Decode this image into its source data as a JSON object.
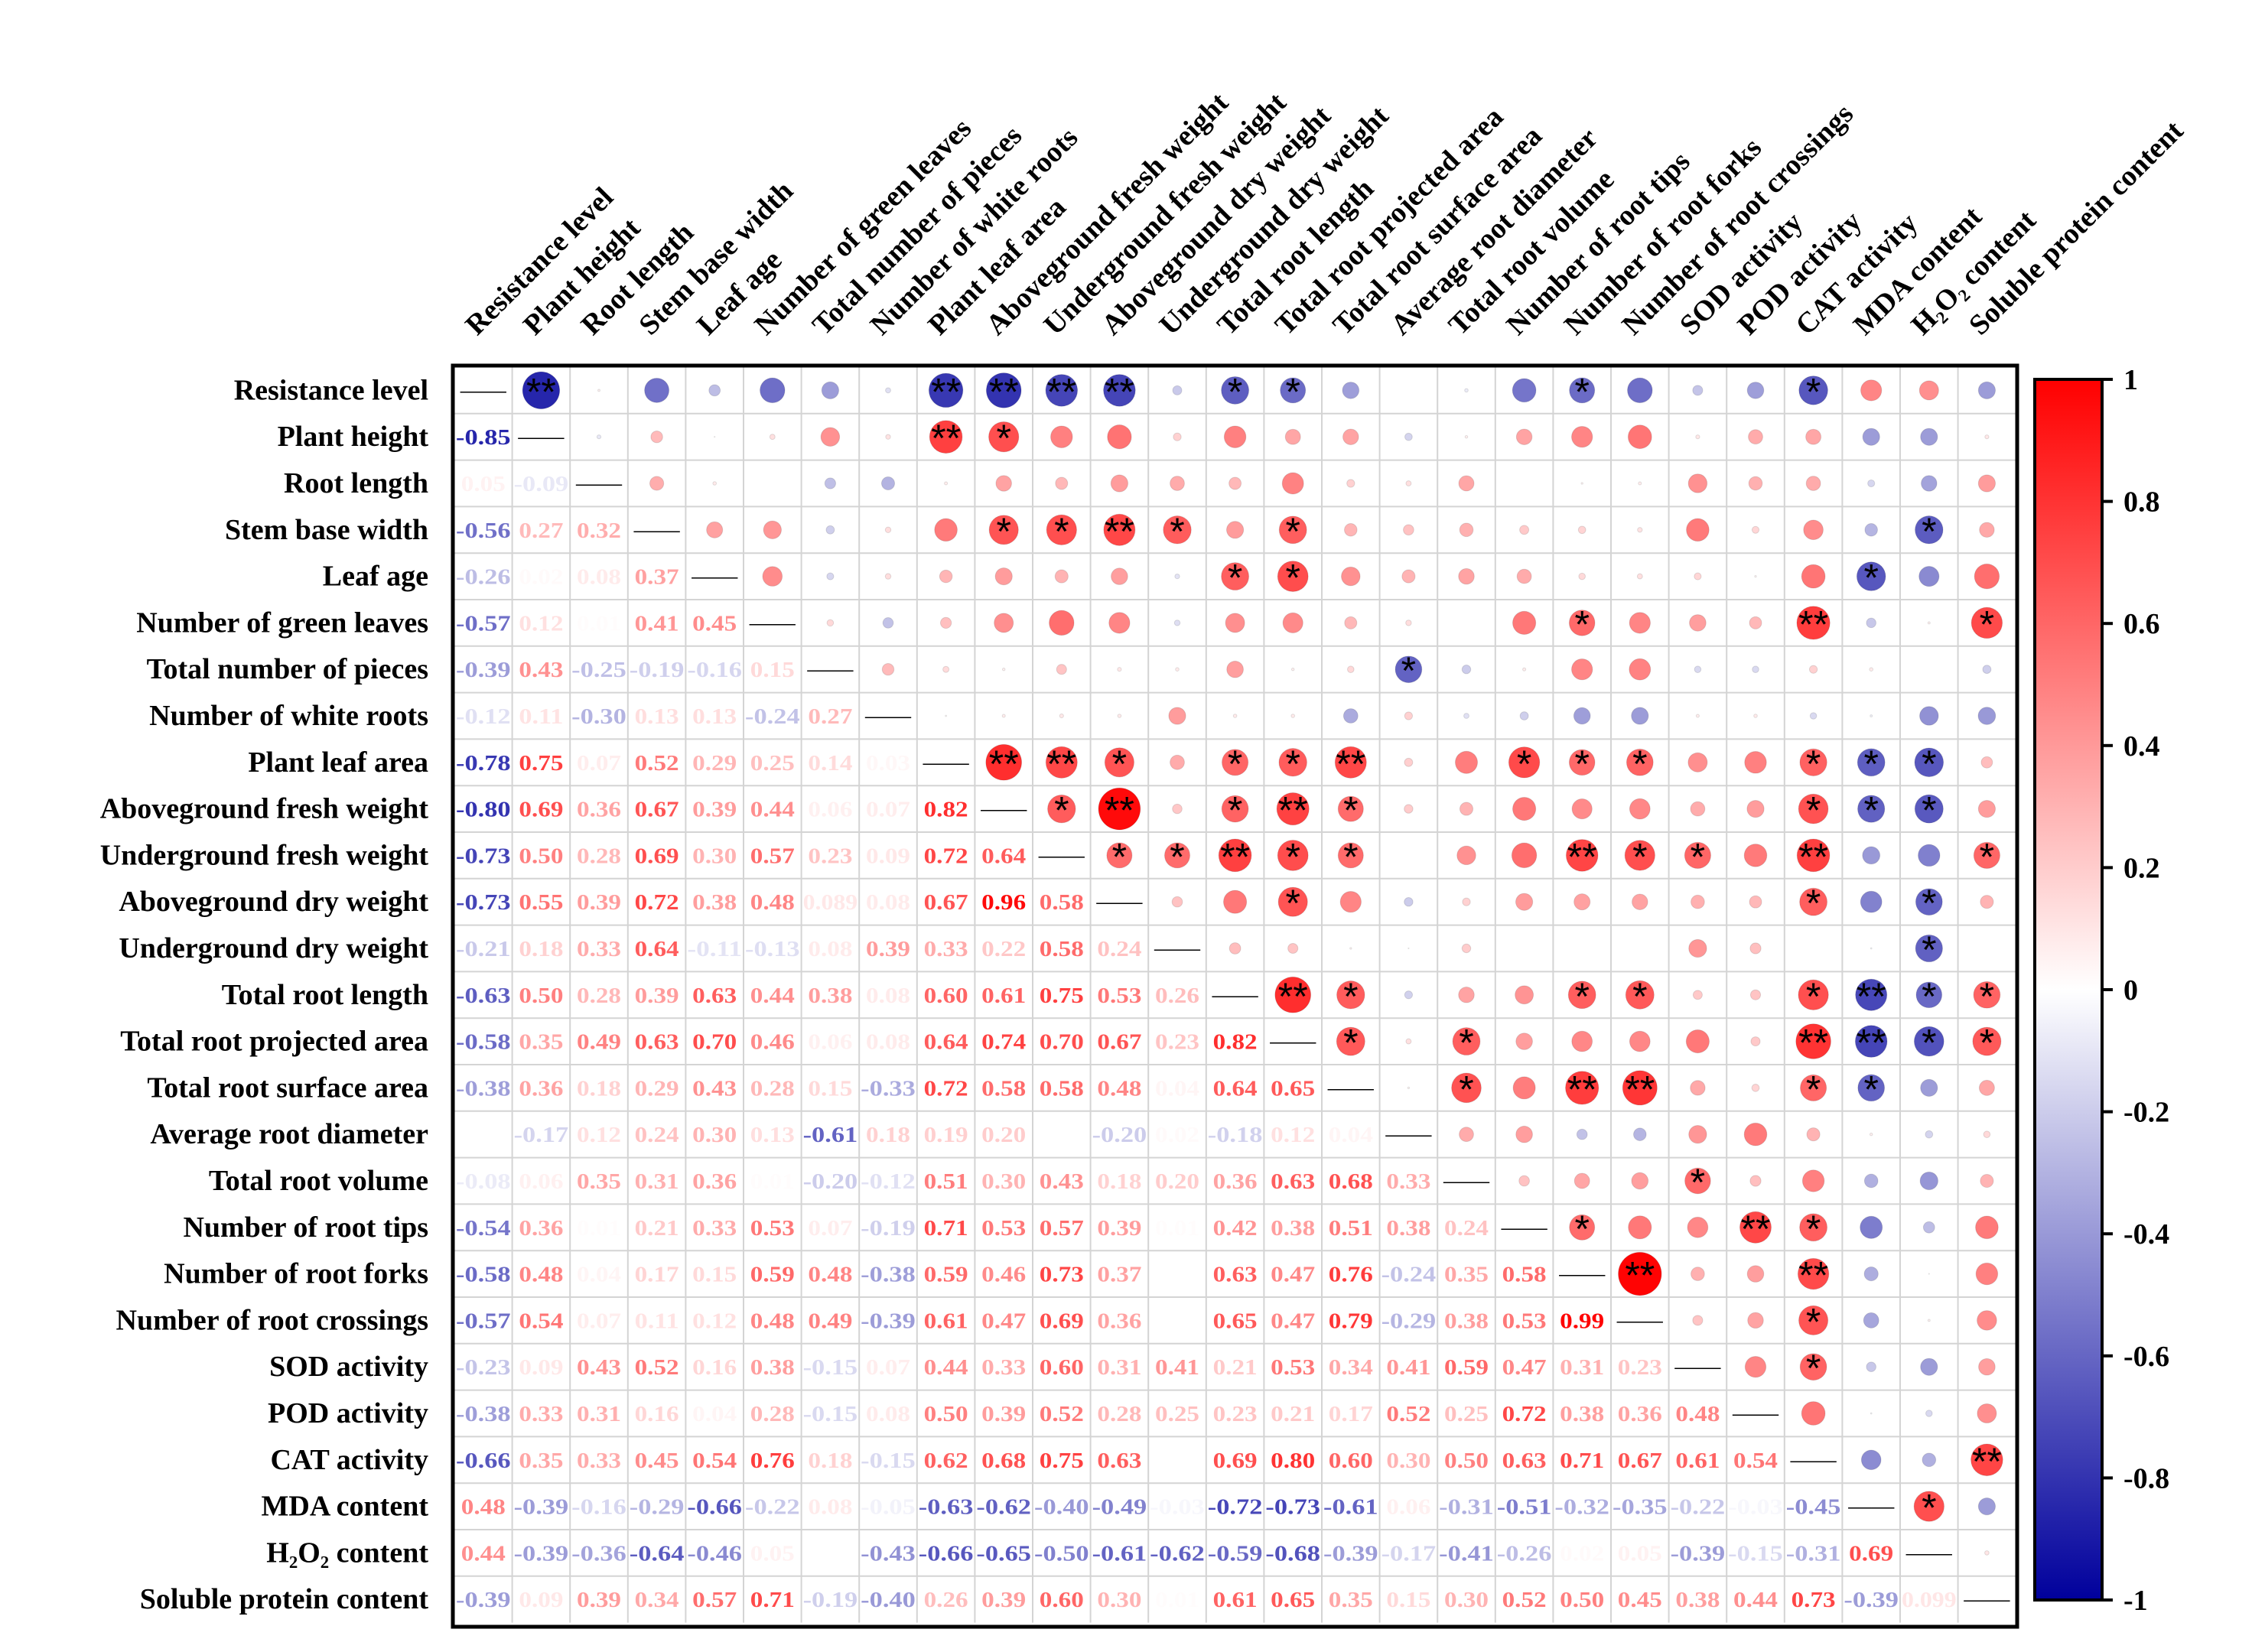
{
  "chart_data": {
    "type": "heatmap",
    "variables": [
      "Resistance level",
      "Plant height",
      "Root length",
      "Stem base width",
      "Leaf age",
      "Number of green leaves",
      "Total number of pieces",
      "Number of white roots",
      "Plant leaf area",
      "Aboveground fresh weight",
      "Underground fresh weight",
      "Aboveground dry weight",
      "Underground dry weight",
      "Total root length",
      "Total root projected area",
      "Total root surface area",
      "Average root diameter",
      "Total root volume",
      "Number of root tips",
      "Number of root forks",
      "Number of root crossings",
      "SOD activity",
      "POD activity",
      "CAT activity",
      "MDA content",
      "H₂O₂ content",
      "Soluble protein content"
    ],
    "lower_labels": [
      [
        "-0.85"
      ],
      [
        "0.05",
        "-0.09"
      ],
      [
        "-0.56",
        "0.27",
        "0.32"
      ],
      [
        "-0.26",
        "0.02",
        "0.08",
        "0.37"
      ],
      [
        "-0.57",
        "0.12",
        "0.01",
        "0.41",
        "0.45"
      ],
      [
        "-0.39",
        "0.43",
        "-0.25",
        "-0.19",
        "-0.16",
        "0.15"
      ],
      [
        "-0.12",
        "0.11",
        "-0.30",
        "0.13",
        "0.13",
        "-0.24",
        "0.27"
      ],
      [
        "-0.78",
        "0.75",
        "0.07",
        "0.52",
        "0.29",
        "0.25",
        "0.14",
        "0.03"
      ],
      [
        "-0.80",
        "0.69",
        "0.36",
        "0.67",
        "0.39",
        "0.44",
        "0.06",
        "0.07",
        "0.82"
      ],
      [
        "-0.73",
        "0.50",
        "0.28",
        "0.69",
        "0.30",
        "0.57",
        "0.23",
        "0.09",
        "0.72",
        "0.64"
      ],
      [
        "-0.73",
        "0.55",
        "0.39",
        "0.72",
        "0.38",
        "0.48",
        "0.089",
        "0.08",
        "0.67",
        "0.96",
        "0.58"
      ],
      [
        "-0.21",
        "0.18",
        "0.33",
        "0.64",
        "-0.11",
        "-0.13",
        "0.08",
        "0.39",
        "0.33",
        "0.22",
        "0.58",
        "0.24"
      ],
      [
        "-0.63",
        "0.50",
        "0.28",
        "0.39",
        "0.63",
        "0.44",
        "0.38",
        "0.08",
        "0.60",
        "0.61",
        "0.75",
        "0.53",
        "0.26"
      ],
      [
        "-0.58",
        "0.35",
        "0.49",
        "0.63",
        "0.70",
        "0.46",
        "0.06",
        "0.08",
        "0.64",
        "0.74",
        "0.70",
        "0.67",
        "0.23",
        "0.82"
      ],
      [
        "-0.38",
        "0.36",
        "0.18",
        "0.29",
        "0.43",
        "0.28",
        "0.15",
        "-0.33",
        "0.72",
        "0.58",
        "0.58",
        "0.48",
        "0.04",
        "0.64",
        "0.65"
      ],
      [
        "0.00",
        "-0.17",
        "0.12",
        "0.24",
        "0.30",
        "0.13",
        "-0.61",
        "0.18",
        "0.19",
        "0.20",
        "0.00",
        "-0.20",
        "0.02",
        "-0.18",
        "0.12",
        "0.04"
      ],
      [
        "-0.08",
        "0.06",
        "0.35",
        "0.31",
        "0.36",
        "0.01",
        "-0.20",
        "-0.12",
        "0.51",
        "0.30",
        "0.43",
        "0.18",
        "0.20",
        "0.36",
        "0.63",
        "0.68",
        "0.33"
      ],
      [
        "-0.54",
        "0.36",
        "0.01",
        "0.21",
        "0.33",
        "0.53",
        "0.07",
        "-0.19",
        "0.71",
        "0.53",
        "0.57",
        "0.39",
        "0.01",
        "0.42",
        "0.38",
        "0.51",
        "0.38",
        "0.24"
      ],
      [
        "-0.58",
        "0.48",
        "0.04",
        "0.17",
        "0.15",
        "0.59",
        "0.48",
        "-0.38",
        "0.59",
        "0.46",
        "0.73",
        "0.37",
        "0.00",
        "0.63",
        "0.47",
        "0.76",
        "-0.24",
        "0.35",
        "0.58"
      ],
      [
        "-0.57",
        "0.54",
        "0.07",
        "0.11",
        "0.12",
        "0.48",
        "0.49",
        "-0.39",
        "0.61",
        "0.47",
        "0.69",
        "0.36",
        "0.00",
        "0.65",
        "0.47",
        "0.79",
        "-0.29",
        "0.38",
        "0.53",
        "0.99"
      ],
      [
        "-0.23",
        "0.09",
        "0.43",
        "0.52",
        "0.16",
        "0.38",
        "-0.15",
        "0.07",
        "0.44",
        "0.33",
        "0.60",
        "0.31",
        "0.41",
        "0.21",
        "0.53",
        "0.34",
        "0.41",
        "0.59",
        "0.47",
        "0.31",
        "0.23"
      ],
      [
        "-0.38",
        "0.33",
        "0.31",
        "0.16",
        "0.04",
        "0.28",
        "-0.15",
        "0.08",
        "0.50",
        "0.39",
        "0.52",
        "0.28",
        "0.25",
        "0.23",
        "0.21",
        "0.17",
        "0.52",
        "0.25",
        "0.72",
        "0.38",
        "0.36",
        "0.48"
      ],
      [
        "-0.66",
        "0.35",
        "0.33",
        "0.45",
        "0.54",
        "0.76",
        "0.18",
        "-0.15",
        "0.62",
        "0.68",
        "0.75",
        "0.63",
        "0.00",
        "0.69",
        "0.80",
        "0.60",
        "0.30",
        "0.50",
        "0.63",
        "0.71",
        "0.67",
        "0.61",
        "0.54"
      ],
      [
        "0.48",
        "-0.39",
        "-0.16",
        "-0.29",
        "-0.66",
        "-0.22",
        "0.08",
        "-0.05",
        "-0.63",
        "-0.62",
        "-0.40",
        "-0.49",
        "-0.03",
        "-0.72",
        "-0.73",
        "-0.61",
        "0.06",
        "-0.31",
        "-0.51",
        "-0.32",
        "-0.35",
        "-0.22",
        "-0.03",
        "-0.45"
      ],
      [
        "0.44",
        "-0.39",
        "-0.36",
        "-0.64",
        "-0.46",
        "0.05",
        "0.00",
        "-0.43",
        "-0.66",
        "-0.65",
        "-0.50",
        "-0.61",
        "-0.62",
        "-0.59",
        "-0.68",
        "-0.39",
        "-0.17",
        "-0.41",
        "-0.26",
        "0.02",
        "0.05",
        "-0.39",
        "-0.15",
        "-0.31",
        "0.69"
      ],
      [
        "-0.39",
        "0.09",
        "0.39",
        "0.34",
        "0.57",
        "0.71",
        "-0.19",
        "-0.40",
        "0.26",
        "0.39",
        "0.60",
        "0.30",
        "0.01",
        "0.61",
        "0.65",
        "0.35",
        "0.15",
        "0.30",
        "0.52",
        "0.50",
        "0.45",
        "0.38",
        "0.44",
        "0.73",
        "-0.39",
        "0.099"
      ]
    ],
    "significance": {
      "0": {
        "1": "**",
        "8": "**",
        "9": "**",
        "10": "**",
        "11": "**",
        "13": "*",
        "14": "*",
        "19": "*",
        "23": "*"
      },
      "1": {
        "8": "**",
        "9": "*"
      },
      "3": {
        "9": "*",
        "10": "*",
        "11": "**",
        "12": "*",
        "14": "*",
        "25": "*"
      },
      "4": {
        "13": "*",
        "14": "*",
        "24": "*"
      },
      "5": {
        "19": "*",
        "23": "**",
        "26": "*"
      },
      "6": {
        "16": "*"
      },
      "8": {
        "9": "**",
        "10": "**",
        "11": "*",
        "13": "*",
        "14": "*",
        "15": "**",
        "18": "*",
        "19": "*",
        "20": "*",
        "23": "*",
        "24": "*",
        "25": "*"
      },
      "9": {
        "10": "*",
        "11": "**",
        "13": "*",
        "14": "**",
        "15": "*",
        "23": "*",
        "24": "*",
        "25": "*"
      },
      "10": {
        "11": "*",
        "12": "*",
        "13": "**",
        "14": "*",
        "15": "*",
        "19": "**",
        "20": "*",
        "21": "*",
        "23": "**",
        "26": "*"
      },
      "11": {
        "14": "*",
        "23": "*",
        "25": "*"
      },
      "12": {
        "25": "*"
      },
      "13": {
        "14": "**",
        "15": "*",
        "19": "*",
        "20": "*",
        "23": "*",
        "24": "**",
        "25": "*",
        "26": "*"
      },
      "14": {
        "15": "*",
        "17": "*",
        "23": "**",
        "24": "**",
        "25": "*",
        "26": "*"
      },
      "15": {
        "17": "*",
        "19": "**",
        "20": "**",
        "23": "*",
        "24": "*"
      },
      "17": {
        "21": "*"
      },
      "18": {
        "19": "*",
        "22": "**",
        "23": "*"
      },
      "19": {
        "20": "**",
        "23": "**"
      },
      "20": {
        "23": "*"
      },
      "21": {
        "23": "*"
      },
      "23": {
        "26": "**"
      },
      "24": {
        "25": "*"
      }
    },
    "diagonal_label": "——",
    "colorbar": {
      "min": -1,
      "max": 1,
      "ticks": [
        "1",
        "0.8",
        "0.6",
        "0.4",
        "0.2",
        "0",
        "-0.2",
        "-0.4",
        "-0.6",
        "-0.8",
        "-1"
      ]
    },
    "colors": {
      "negative": "#00009c",
      "zero": "#ffffff",
      "positive": "#ff0000"
    }
  }
}
